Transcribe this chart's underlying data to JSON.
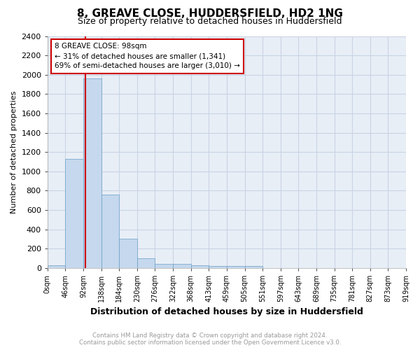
{
  "title": "8, GREAVE CLOSE, HUDDERSFIELD, HD2 1NG",
  "subtitle": "Size of property relative to detached houses in Huddersfield",
  "xlabel": "Distribution of detached houses by size in Huddersfield",
  "ylabel": "Number of detached properties",
  "bar_color": "#c5d8ed",
  "bar_edge_color": "#6a9fc8",
  "grid_color": "#c8d4e4",
  "background_color": "#e8eef6",
  "bins": [
    "0sqm",
    "46sqm",
    "92sqm",
    "138sqm",
    "184sqm",
    "230sqm",
    "276sqm",
    "322sqm",
    "368sqm",
    "413sqm",
    "459sqm",
    "505sqm",
    "551sqm",
    "597sqm",
    "643sqm",
    "689sqm",
    "735sqm",
    "781sqm",
    "827sqm",
    "873sqm",
    "919sqm"
  ],
  "values": [
    30,
    1130,
    1960,
    760,
    300,
    100,
    45,
    45,
    30,
    20,
    20,
    20,
    0,
    0,
    0,
    0,
    0,
    0,
    0,
    0
  ],
  "ylim": [
    0,
    2400
  ],
  "yticks": [
    0,
    200,
    400,
    600,
    800,
    1000,
    1200,
    1400,
    1600,
    1800,
    2000,
    2200,
    2400
  ],
  "annotation_title": "8 GREAVE CLOSE: 98sqm",
  "annotation_line1": "← 31% of detached houses are smaller (1,341)",
  "annotation_line2": "69% of semi-detached houses are larger (3,010) →",
  "annotation_box_color": "#ffffff",
  "annotation_box_edge": "#cc0000",
  "footer_line1": "Contains HM Land Registry data © Crown copyright and database right 2024.",
  "footer_line2": "Contains public sector information licensed under the Open Government Licence v3.0.",
  "footer_color": "#999999",
  "red_line_color": "#cc0000",
  "title_fontsize": 11,
  "subtitle_fontsize": 9,
  "ylabel_fontsize": 8,
  "xlabel_fontsize": 9,
  "ytick_fontsize": 8,
  "xtick_fontsize": 7
}
